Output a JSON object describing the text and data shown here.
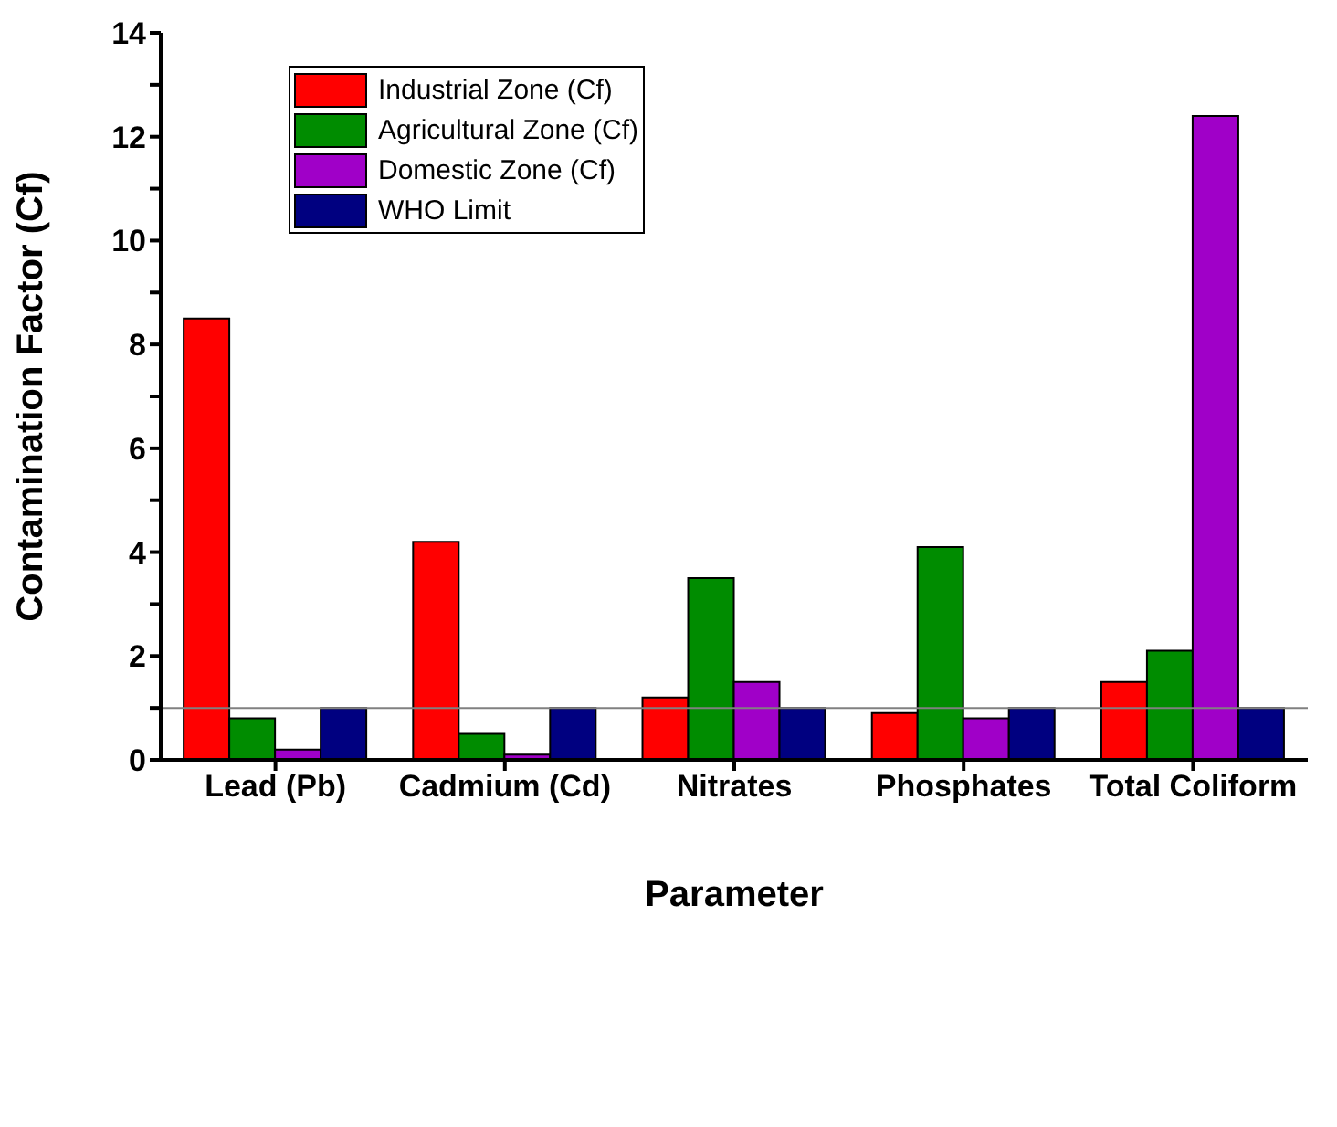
{
  "chart_data": {
    "type": "bar",
    "xlabel": "Parameter",
    "ylabel": "Contamination Factor (Cf)",
    "categories": [
      "Lead (Pb)",
      "Cadmium (Cd)",
      "Nitrates",
      "Phosphates",
      "Total Coliform"
    ],
    "series": [
      {
        "name": "Industrial Zone (Cf)",
        "color": "#ff0000",
        "values": [
          8.5,
          4.2,
          1.2,
          0.9,
          1.5
        ]
      },
      {
        "name": "Agricultural Zone (Cf)",
        "color": "#008c00",
        "values": [
          0.8,
          0.5,
          3.5,
          4.1,
          2.1
        ]
      },
      {
        "name": "Domestic Zone (Cf)",
        "color": "#a000c8",
        "values": [
          0.2,
          0.1,
          1.5,
          0.8,
          12.4
        ]
      },
      {
        "name": "WHO Limit",
        "color": "#000080",
        "values": [
          1,
          1,
          1,
          1,
          1
        ]
      }
    ],
    "ylim": [
      0,
      14
    ],
    "yticks": [
      0,
      {
        "value": 1,
        "label": null
      },
      2,
      {
        "value": 3,
        "label": null
      },
      4,
      {
        "value": 5,
        "label": null
      },
      6,
      {
        "value": 7,
        "label": null
      },
      8,
      {
        "value": 9,
        "label": null
      },
      10,
      {
        "value": 11,
        "label": null
      },
      12,
      {
        "value": 13,
        "label": null
      },
      14
    ],
    "ref_lines": [
      {
        "axis": "y",
        "value": 1,
        "label": null,
        "color": "#808080"
      }
    ],
    "grid": false,
    "legend": "top left"
  }
}
